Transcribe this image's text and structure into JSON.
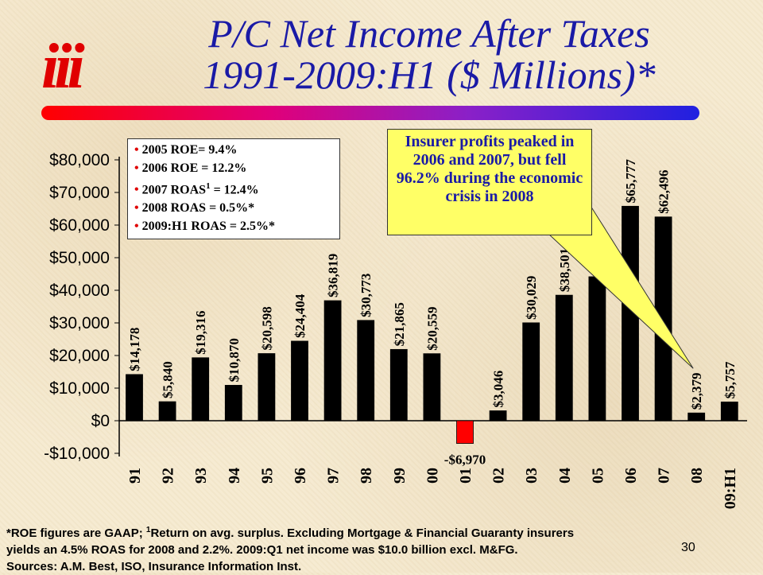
{
  "logo_text": "iii",
  "title": {
    "line1": "P/C Net Income After Taxes",
    "line2": "1991-2009:H1 ($ Millions)*"
  },
  "stats_box": [
    {
      "bullet": "•",
      "text": "2005 ROE= 9.4%"
    },
    {
      "bullet": "•",
      "text": "2006 ROE = 12.2%"
    },
    {
      "bullet": "•",
      "text": "2007 ROAS",
      "sup": "1",
      "text_after": " = 12.4%"
    },
    {
      "bullet": "•",
      "text": "2008 ROAS = 0.5%*"
    },
    {
      "bullet": "•",
      "text": "2009:H1 ROAS = 2.5%*"
    }
  ],
  "callout": "Insurer profits peaked in 2006 and 2007, but fell 96.2% during the economic crisis in 2008",
  "footnote": {
    "line1_a": "*ROE figures are GAAP; ",
    "line1_sup": "1",
    "line1_b": "Return on avg. surplus.  Excluding Mortgage & Financial Guaranty insurers",
    "line2": "yields an 4.5% ROAS for 2008 and 2.2%.  2009:Q1 net income was $10.0 billion excl. M&FG.",
    "line3": "Sources: A.M. Best, ISO, Insurance Information Inst."
  },
  "page_number": "30",
  "colors": {
    "bar_positive": "#000000",
    "bar_negative": "#ff0000",
    "title": "#1a1aa6",
    "callout_bg": "#ffff66",
    "logo": "#e00000"
  },
  "chart_data": {
    "type": "bar",
    "categories": [
      "91",
      "92",
      "93",
      "94",
      "95",
      "96",
      "97",
      "98",
      "99",
      "00",
      "01",
      "02",
      "03",
      "04",
      "05",
      "06",
      "07",
      "08",
      "09:H1"
    ],
    "values": [
      14178,
      5840,
      19316,
      10870,
      20598,
      24404,
      36819,
      30773,
      21865,
      20559,
      -6970,
      3046,
      30029,
      38501,
      44155,
      65777,
      62496,
      2379,
      5757
    ],
    "data_labels": [
      "$14,178",
      "$5,840",
      "$19,316",
      "$10,870",
      "$20,598",
      "$24,404",
      "$36,819",
      "$30,773",
      "$21,865",
      "$20,559",
      "-$6,970",
      "$3,046",
      "$30,029",
      "$38,501",
      "$44,155",
      "$65,777",
      "$62,496",
      "$2,379",
      "$5,757"
    ],
    "y_ticks": [
      -10000,
      0,
      10000,
      20000,
      30000,
      40000,
      50000,
      60000,
      70000,
      80000
    ],
    "y_tick_labels": [
      "-$10,000",
      "$0",
      "$10,000",
      "$20,000",
      "$30,000",
      "$40,000",
      "$50,000",
      "$60,000",
      "$70,000",
      "$80,000"
    ],
    "ylim": [
      -10000,
      80000
    ],
    "grid": false,
    "legend": false
  }
}
